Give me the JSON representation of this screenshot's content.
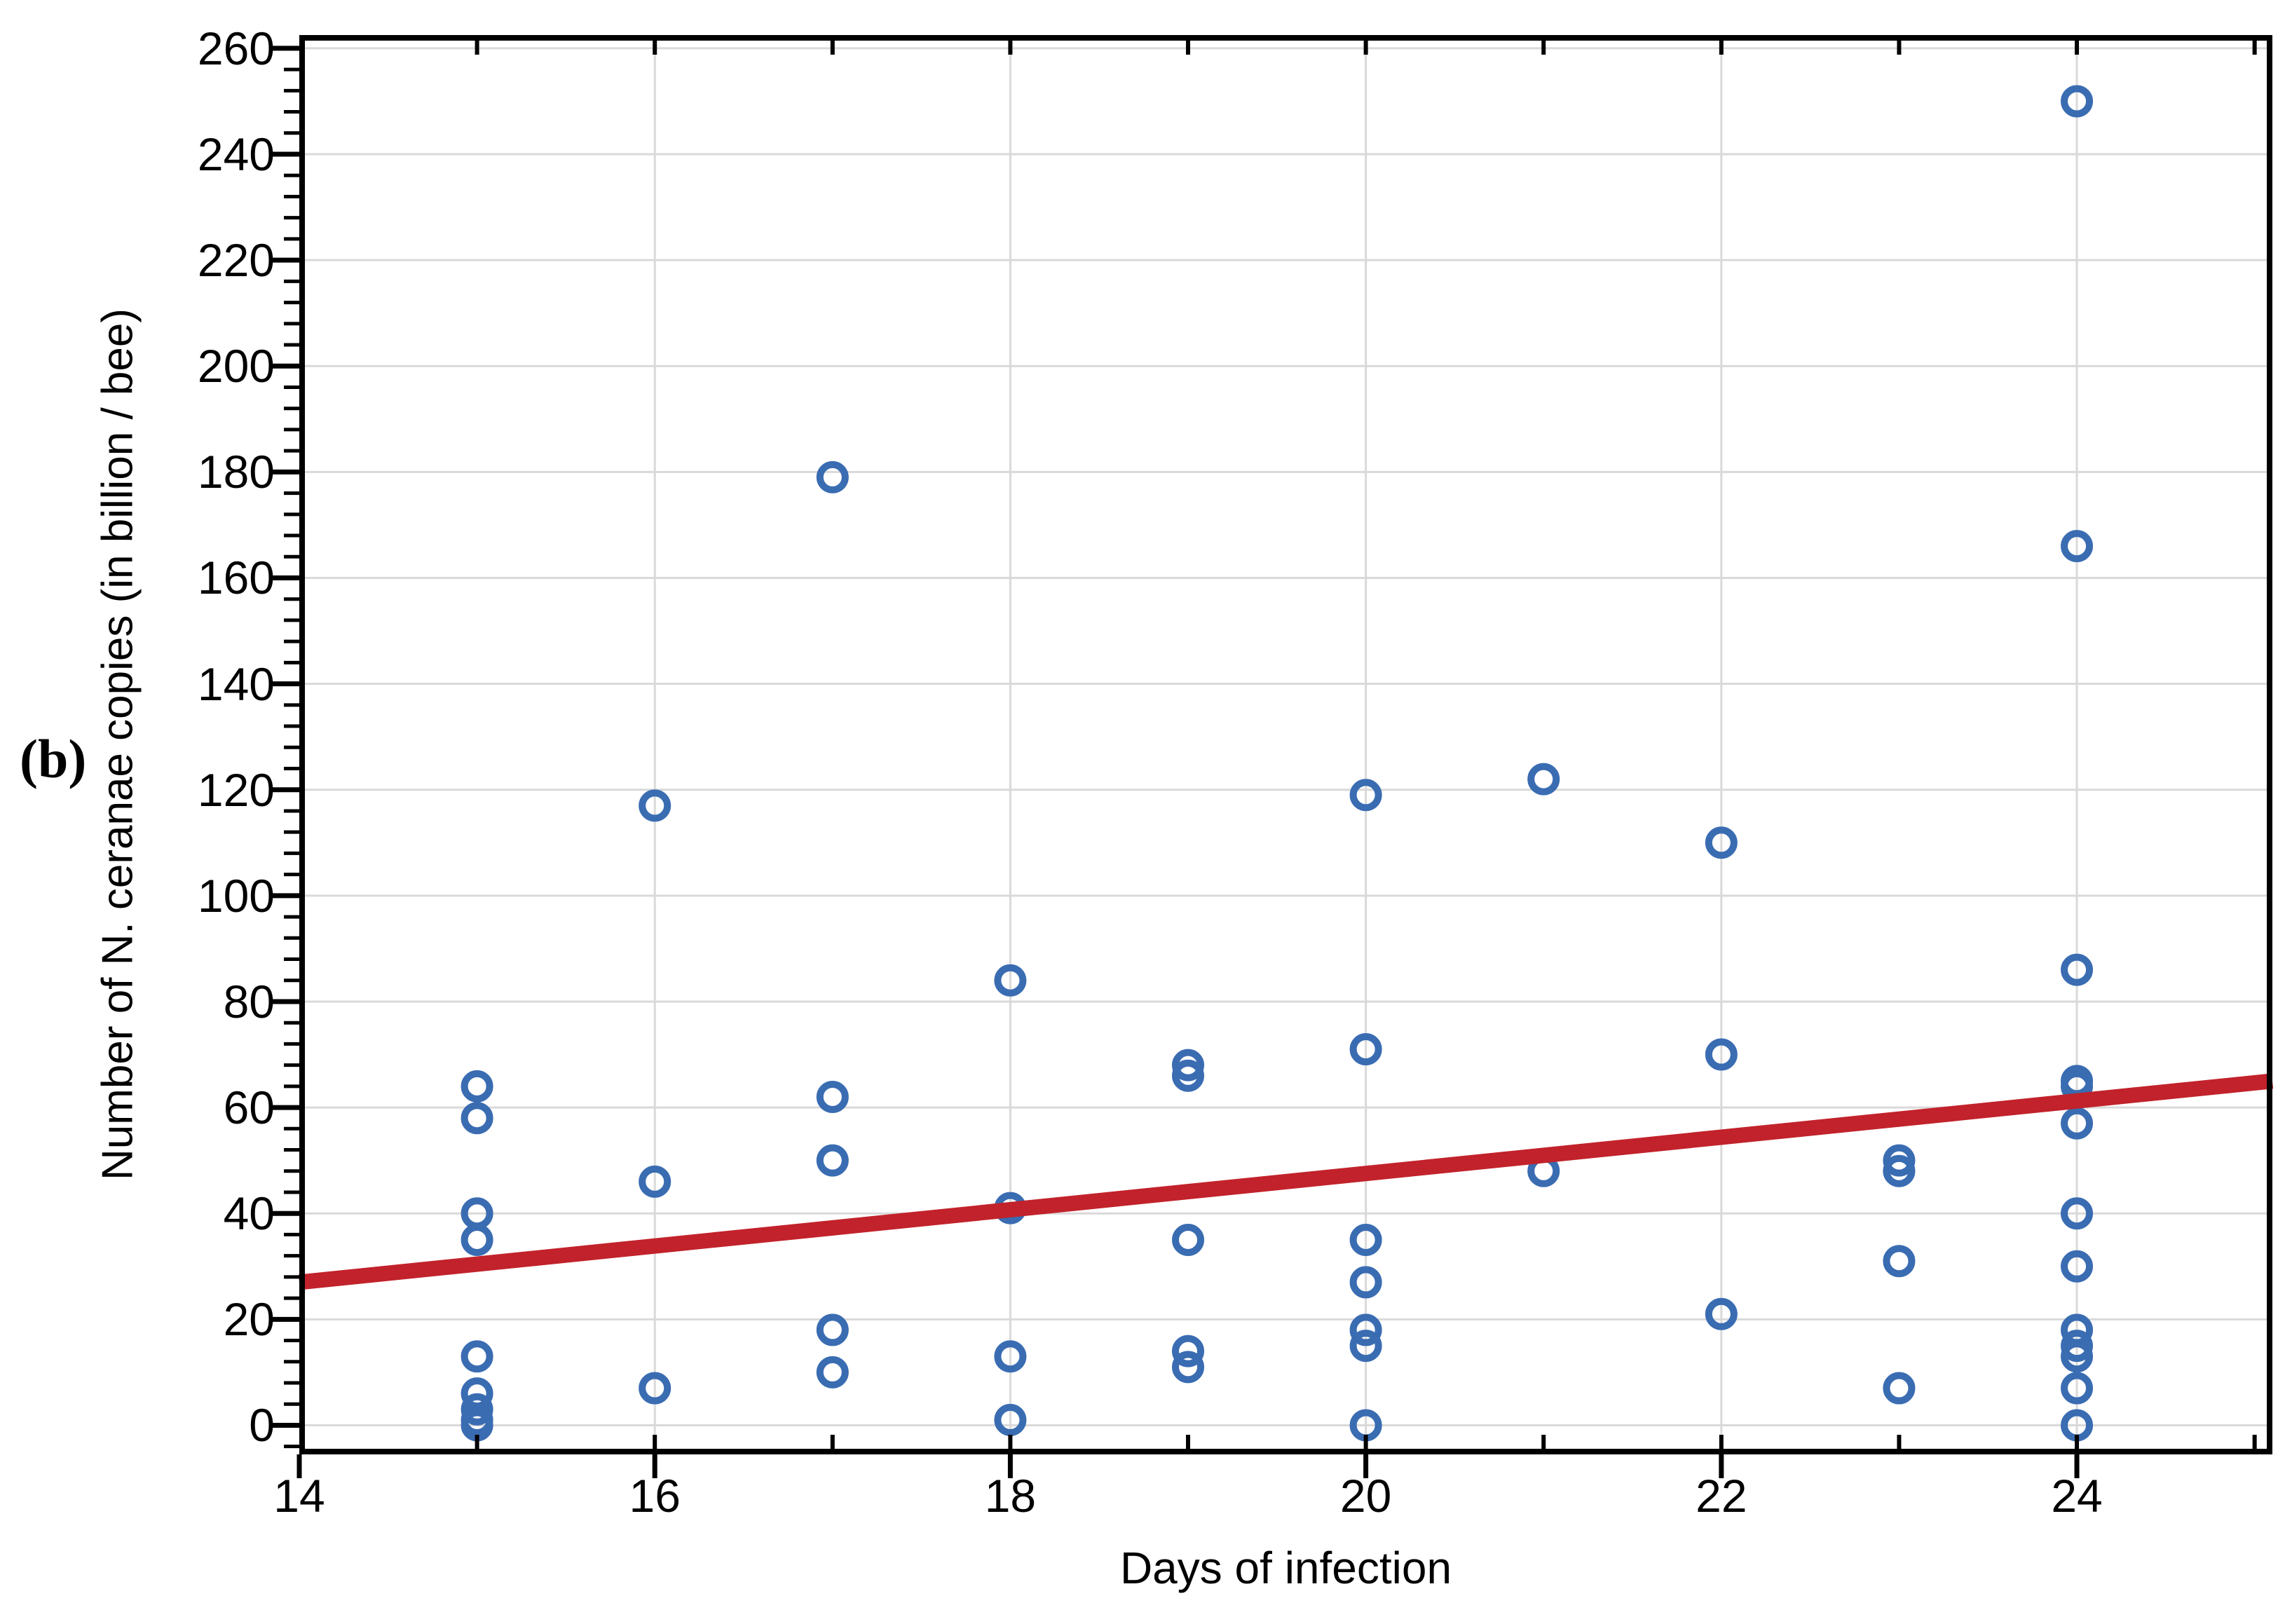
{
  "panel_label": "(b)",
  "chart_data": {
    "type": "scatter",
    "title": "",
    "xlabel": "Days of infection",
    "ylabel": "Number of N. ceranae copies (in billion / bee)",
    "xlim": [
      14,
      25.1
    ],
    "ylim": [
      -5.5,
      262.5
    ],
    "x_major_ticks": [
      14,
      16,
      18,
      20,
      22,
      24
    ],
    "x_minor_ticks": [
      15,
      16,
      17,
      18,
      19,
      20,
      21,
      22,
      23,
      24,
      25
    ],
    "y_major_ticks": [
      0,
      20,
      40,
      60,
      80,
      100,
      120,
      140,
      160,
      180,
      200,
      220,
      240,
      260
    ],
    "y_minor_step": 4,
    "grid": true,
    "legend_position": "none",
    "marker_shape": "open-circle",
    "points": [
      [
        15,
        64
      ],
      [
        15,
        58
      ],
      [
        15,
        40
      ],
      [
        15,
        35
      ],
      [
        15,
        13
      ],
      [
        15,
        6
      ],
      [
        15,
        3
      ],
      [
        15,
        1
      ],
      [
        15,
        0
      ],
      [
        16,
        117
      ],
      [
        16,
        46
      ],
      [
        16,
        7
      ],
      [
        17,
        179
      ],
      [
        17,
        62
      ],
      [
        17,
        50
      ],
      [
        17,
        18
      ],
      [
        17,
        10
      ],
      [
        18,
        84
      ],
      [
        18,
        41
      ],
      [
        18,
        13
      ],
      [
        18,
        1
      ],
      [
        19,
        68
      ],
      [
        19,
        66
      ],
      [
        19,
        35
      ],
      [
        19,
        14
      ],
      [
        19,
        11
      ],
      [
        20,
        119
      ],
      [
        20,
        71
      ],
      [
        20,
        35
      ],
      [
        20,
        27
      ],
      [
        20,
        18
      ],
      [
        20,
        15
      ],
      [
        20,
        0
      ],
      [
        21,
        122
      ],
      [
        21,
        48
      ],
      [
        22,
        110
      ],
      [
        22,
        70
      ],
      [
        22,
        21
      ],
      [
        23,
        50
      ],
      [
        23,
        48
      ],
      [
        23,
        31
      ],
      [
        23,
        7
      ],
      [
        24,
        250
      ],
      [
        24,
        166
      ],
      [
        24,
        86
      ],
      [
        24,
        65
      ],
      [
        24,
        64
      ],
      [
        24,
        57
      ],
      [
        24,
        40
      ],
      [
        24,
        30
      ],
      [
        24,
        18
      ],
      [
        24,
        15
      ],
      [
        24,
        13
      ],
      [
        24,
        7
      ],
      [
        24,
        0
      ]
    ],
    "trend_line": {
      "x_start": 14,
      "y_start": 27,
      "x_end": 25.1,
      "y_end": 65
    },
    "colors": {
      "marker": "#3A6CB2",
      "trend": "#C2222B",
      "grid": "#D9D9D9",
      "axis": "#000000",
      "text": "#000000"
    }
  }
}
